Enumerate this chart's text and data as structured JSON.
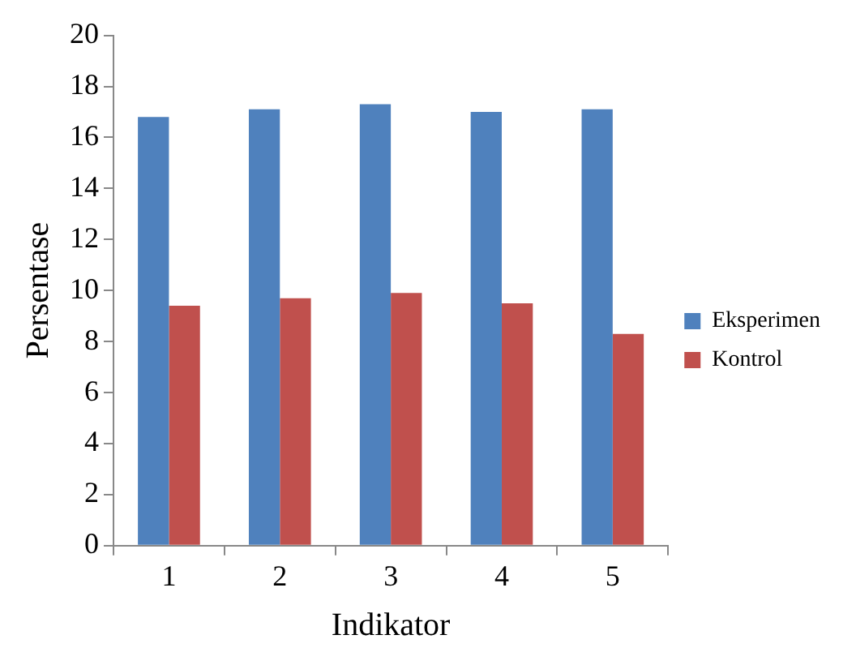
{
  "chart_data": {
    "type": "bar",
    "xlabel": "Indikator",
    "ylabel": "Persentase",
    "categories": [
      "1",
      "2",
      "3",
      "4",
      "5"
    ],
    "series": [
      {
        "name": "Eksperimen",
        "color": "#4f81bd",
        "values": [
          16.8,
          17.1,
          17.3,
          17.0,
          17.1
        ]
      },
      {
        "name": "Kontrol",
        "color": "#c0504d",
        "values": [
          9.4,
          9.7,
          9.9,
          9.5,
          8.3
        ]
      }
    ],
    "ylim": [
      0,
      20
    ],
    "yticks": [
      0,
      2,
      4,
      6,
      8,
      10,
      12,
      14,
      16,
      18,
      20
    ],
    "grid": false,
    "legend": "right"
  }
}
